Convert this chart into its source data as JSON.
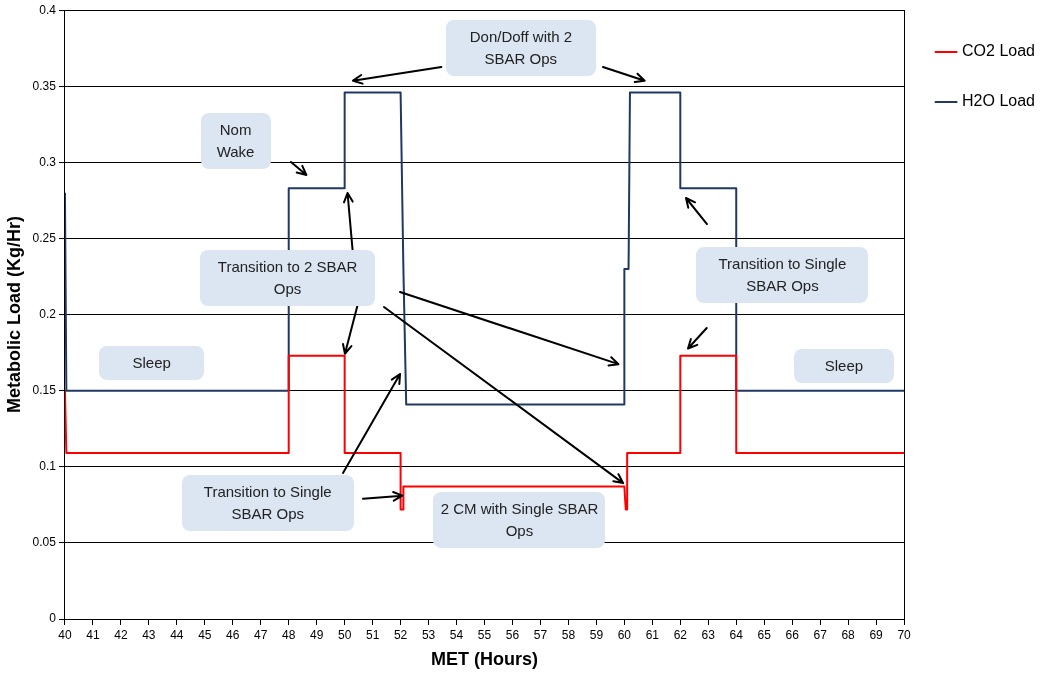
{
  "chart_data": {
    "type": "line",
    "xlabel": "MET (Hours)",
    "ylabel": "Metabolic Load (Kg/Hr)",
    "xlim": [
      40,
      70
    ],
    "xticks": [
      40,
      41,
      42,
      43,
      44,
      45,
      46,
      47,
      48,
      49,
      50,
      51,
      52,
      53,
      54,
      55,
      56,
      57,
      58,
      59,
      60,
      61,
      62,
      63,
      64,
      65,
      66,
      67,
      68,
      69,
      70
    ],
    "ylim": [
      0,
      0.4
    ],
    "yticks": [
      0,
      0.05,
      0.1,
      0.15,
      0.2,
      0.25,
      0.3,
      0.35,
      0.4
    ],
    "grid": "y",
    "legend": "right",
    "marker": "none",
    "line_style": "solid",
    "series": [
      {
        "name": "CO2 Load",
        "color": "#ff0000",
        "x": [
          40,
          40.05,
          48,
          48,
          50,
          50,
          52,
          52,
          52.1,
          52.1,
          60,
          60.05,
          60.1,
          60.1,
          62,
          62,
          64,
          64,
          70
        ],
        "values": [
          0.15,
          0.109,
          0.109,
          0.173,
          0.173,
          0.109,
          0.109,
          0.072,
          0.072,
          0.087,
          0.087,
          0.072,
          0.072,
          0.109,
          0.109,
          0.173,
          0.173,
          0.109,
          0.109
        ]
      },
      {
        "name": "H2O Load",
        "color": "#1f3864",
        "x": [
          40,
          40.05,
          48,
          48,
          50,
          50,
          52,
          52.1,
          52.1,
          52.2,
          60,
          60,
          60.15,
          60.2,
          62,
          62,
          64,
          64,
          70
        ],
        "values": [
          0.28,
          0.15,
          0.15,
          0.283,
          0.283,
          0.346,
          0.346,
          0.23,
          0.23,
          0.141,
          0.141,
          0.23,
          0.23,
          0.346,
          0.346,
          0.283,
          0.283,
          0.15,
          0.15
        ]
      }
    ],
    "annotations": [
      "Don/Doff with 2 SBAR Ops",
      "Nom Wake",
      "Transition to 2 SBAR Ops",
      "Sleep",
      "Transition to Single SBAR Ops",
      "2 CM with Single SBAR Ops",
      "Transition to Single SBAR Ops",
      "Sleep"
    ]
  }
}
